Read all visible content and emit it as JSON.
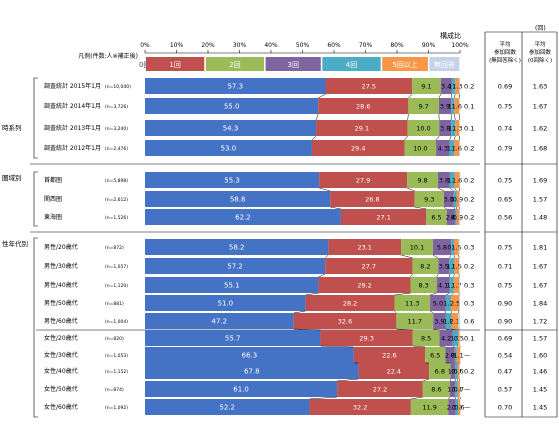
{
  "chart_data": {
    "type": "bar",
    "stacked": true,
    "orientation": "horizontal",
    "title": "構成比",
    "unit_label": "(回)",
    "filter_label": "凡例(件数:人※補正後)",
    "xlim": [
      0,
      100
    ],
    "x_ticks": [
      "0%",
      "10%",
      "20%",
      "30%",
      "40%",
      "50%",
      "60%",
      "70%",
      "80%",
      "90%",
      "100%"
    ],
    "legend_position": "top",
    "categories_legend": [
      "0回",
      "1回",
      "2回",
      "3回",
      "4回",
      "5回以上",
      "無回答"
    ],
    "colors": [
      "#4472c4",
      "#c0504d",
      "#9bbb59",
      "#8064a2",
      "#4bacc6",
      "#f79646",
      "#c5d3e8"
    ],
    "stat_headers": [
      "平均\n参加回数\n(無回答除く)",
      "平均\n参加回数\n(0回除く)"
    ],
    "groups": [
      {
        "label": "時系列",
        "rows": [
          {
            "label": "調査統計 2015年1月",
            "n": "(n=10,040)",
            "values": [
              57.3,
              27.5,
              9.1,
              3.4,
              1.2,
              1.3,
              0.2
            ],
            "shown": [
              "57.3",
              "27.5",
              "9.1",
              "3.4",
              "1.2",
              "1.3",
              ""
            ],
            "outside": "0.2",
            "avg1": "0.69",
            "avg2": "1.63"
          },
          {
            "label": "調査統計 2014年1月",
            "n": "(n=3,726)",
            "values": [
              55.0,
              28.6,
              9.7,
              3.9,
              1.0,
              1.6,
              0.1
            ],
            "shown": [
              "55.0",
              "28.6",
              "9.7",
              "3.9",
              "1.0",
              "1.6",
              ""
            ],
            "outside": "0.1",
            "avg1": "0.75",
            "avg2": "1.67"
          },
          {
            "label": "調査統計 2013年1月",
            "n": "(n=3,240)",
            "values": [
              54.3,
              29.1,
              10.0,
              3.8,
              1.3,
              1.3,
              0.1
            ],
            "shown": [
              "54.3",
              "29.1",
              "10.0",
              "3.8",
              "1.3",
              "1.3",
              ""
            ],
            "outside": "0.1",
            "avg1": "0.74",
            "avg2": "1.62"
          },
          {
            "label": "調査統計 2012年1月",
            "n": "(n=2,476)",
            "values": [
              53.0,
              29.4,
              10.0,
              4.3,
              1.5,
              1.6,
              0.2
            ],
            "shown": [
              "53.0",
              "29.4",
              "10.0",
              "4.3",
              "1.5",
              "1.6",
              ""
            ],
            "outside": "0.2",
            "avg1": "0.79",
            "avg2": "1.68"
          }
        ]
      },
      {
        "label": "圏域別",
        "rows": [
          {
            "label": "首都圏",
            "n": "(n=5,898)",
            "values": [
              55.3,
              27.9,
              9.8,
              3.8,
              1.5,
              1.6,
              0.2
            ],
            "shown": [
              "55.3",
              "27.9",
              "9.8",
              "3.8",
              "1.5",
              "1.6",
              ""
            ],
            "outside": "0.2",
            "avg1": "0.75",
            "avg2": "1.69"
          },
          {
            "label": "関西圏",
            "n": "(n=2,612)",
            "values": [
              58.8,
              26.8,
              9.3,
              3.1,
              0.9,
              0.9,
              0.2
            ],
            "shown": [
              "58.8",
              "26.8",
              "9.3",
              "3.1",
              "0.9",
              "0.9",
              ""
            ],
            "outside": "0.2",
            "avg1": "0.65",
            "avg2": "1.57"
          },
          {
            "label": "東海圏",
            "n": "(n=1,526)",
            "values": [
              62.2,
              27.1,
              6.5,
              2.6,
              0.5,
              0.9,
              0.2
            ],
            "shown": [
              "62.2",
              "27.1",
              "6.5",
              "2.6",
              "0.5",
              "0.9",
              ""
            ],
            "outside": "0.2",
            "avg1": "0.56",
            "avg2": "1.48"
          }
        ]
      },
      {
        "label": "性年代別",
        "rows": [
          {
            "label": "男性/20歳代",
            "n": "(n=872)",
            "values": [
              58.2,
              23.1,
              10.1,
              5.8,
              0.9,
              1.5,
              0.3
            ],
            "shown": [
              "58.2",
              "23.1",
              "10.1",
              "5.8",
              "0.9",
              "1.5",
              ""
            ],
            "outside": "0.3",
            "avg1": "0.75",
            "avg2": "1.81"
          },
          {
            "label": "男性/30歳代",
            "n": "(n=1,057)",
            "values": [
              57.2,
              27.7,
              8.2,
              3.5,
              1.6,
              1.5,
              0.2
            ],
            "shown": [
              "57.2",
              "27.7",
              "8.2",
              "3.5",
              "1.6",
              "1.5",
              ""
            ],
            "outside": "0.2",
            "avg1": "0.71",
            "avg2": "1.67"
          },
          {
            "label": "男性/40歳代",
            "n": "(n=1,120)",
            "values": [
              55.1,
              29.2,
              8.3,
              4.1,
              1.3,
              1.7,
              0.3
            ],
            "shown": [
              "55.1",
              "29.2",
              "8.3",
              "4.1",
              "1.3",
              "1.7",
              ""
            ],
            "outside": "0.3",
            "avg1": "0.75",
            "avg2": "1.67"
          },
          {
            "label": "男性/50歳代",
            "n": "(n=881)",
            "values": [
              51.0,
              28.2,
              11.3,
              5.0,
              1.7,
              2.5,
              0.3
            ],
            "shown": [
              "51.0",
              "28.2",
              "11.3",
              "5.0",
              "1.7",
              "2.5",
              ""
            ],
            "outside": "0.3",
            "avg1": "0.90",
            "avg2": "1.84"
          },
          {
            "label": "男性/60歳代",
            "n": "(n=1,004)",
            "values": [
              47.2,
              32.6,
              11.7,
              3.9,
              1.9,
              2.1,
              0.6
            ],
            "shown": [
              "47.2",
              "32.6",
              "11.7",
              "3.9",
              "1.9",
              "2.1",
              ""
            ],
            "outside": "0.6",
            "avg1": "0.90",
            "avg2": "1.72"
          },
          {
            "label": "女性/20歳代",
            "n": "(n=820)",
            "values": [
              55.7,
              29.3,
              8.5,
              4.2,
              1.7,
              0.5,
              0.1
            ],
            "shown": [
              "55.7",
              "29.3",
              "8.5",
              "4.2",
              "1.7",
              "0.5",
              ""
            ],
            "outside": "0.1",
            "avg1": "0.69",
            "avg2": "1.57"
          },
          {
            "label": "女性/30歳代",
            "n": "(n=1,053)",
            "values": [
              66.3,
              22.6,
              6.5,
              2.9,
              0.7,
              1.1,
              0.0
            ],
            "shown": [
              "66.3",
              "22.6",
              "6.5",
              "2.9",
              "0.7",
              "1.1",
              ""
            ],
            "outside": "—",
            "avg1": "0.54",
            "avg2": "1.60"
          },
          {
            "label": "女性/40歳代",
            "n": "(n=1,152)",
            "values": [
              67.8,
              22.4,
              6.8,
              1.5,
              0.7,
              0.6,
              0.2
            ],
            "shown": [
              "67.8",
              "22.4",
              "6.8",
              "1.5",
              "0.7",
              "0.6",
              ""
            ],
            "outside": "0.2",
            "avg1": "0.47",
            "avg2": "1.46"
          },
          {
            "label": "女性/50歳代",
            "n": "(n=874)",
            "values": [
              61.0,
              27.2,
              8.6,
              1.7,
              0.8,
              0.7,
              0.0
            ],
            "shown": [
              "61.0",
              "27.2",
              "8.6",
              "1.7",
              "0.8",
              "0.7",
              ""
            ],
            "outside": "—",
            "avg1": "0.57",
            "avg2": "1.45"
          },
          {
            "label": "女性/60歳代",
            "n": "(n=1,092)",
            "values": [
              52.2,
              32.2,
              11.9,
              2.3,
              0.9,
              0.6,
              0.0
            ],
            "shown": [
              "52.2",
              "32.2",
              "11.9",
              "2.3",
              "0.9",
              "0.6",
              ""
            ],
            "outside": "—",
            "avg1": "0.70",
            "avg2": "1.45"
          }
        ]
      }
    ]
  }
}
